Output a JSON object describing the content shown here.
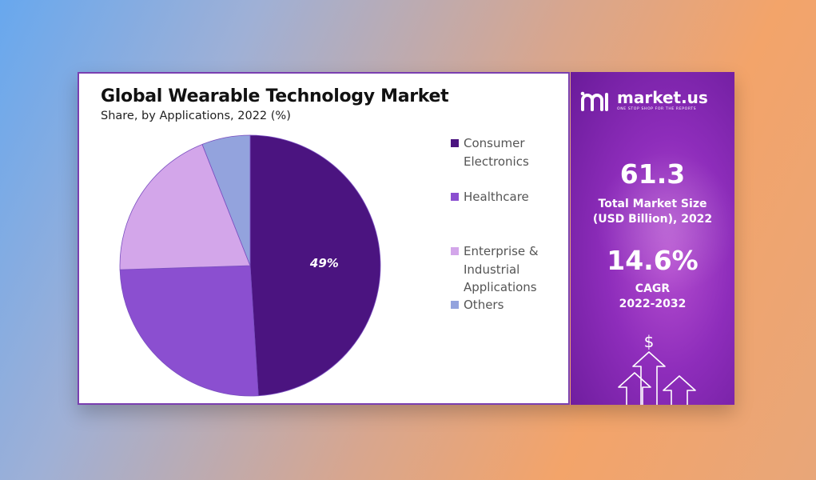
{
  "chart_data": {
    "type": "pie",
    "title": "Global Wearable Technology Market",
    "subtitle": "Share, by Applications, 2022 (%)",
    "slices": [
      {
        "label": "Consumer\nElectronics",
        "value": 49,
        "color": "#4b1480",
        "data_label": "49%"
      },
      {
        "label": "Healthcare",
        "value": 25.5,
        "color": "#8b4fd0",
        "data_label": ""
      },
      {
        "label": "Enterprise &\nIndustrial\nApplications",
        "value": 19.5,
        "color": "#d3a6ea",
        "data_label": ""
      },
      {
        "label": "Others",
        "value": 6,
        "color": "#93a3dd",
        "data_label": ""
      }
    ],
    "legend_position": "right"
  },
  "brand": {
    "name": "market.us",
    "tagline": "ONE STOP SHOP FOR THE REPORTS"
  },
  "stats": {
    "market_size_value": "61.3",
    "market_size_label": "Total Market Size\n(USD Billion), 2022",
    "cagr_value": "14.6%",
    "cagr_label": "CAGR\n2022-2032"
  },
  "icons": {
    "growth": "dollar-arrows-icon"
  }
}
